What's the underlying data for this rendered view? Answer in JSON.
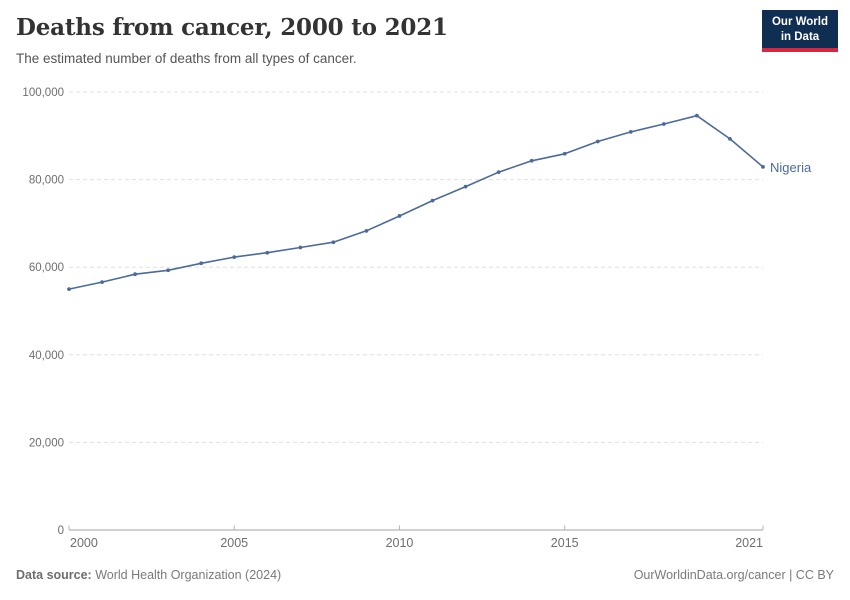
{
  "header": {
    "title": "Deaths from cancer, 2000 to 2021",
    "subtitle": "The estimated number of deaths from all types of cancer."
  },
  "logo": {
    "line1": "Our World",
    "line2": "in Data",
    "bg_color": "#102D52",
    "bar_color": "#D7263D"
  },
  "chart_data": {
    "type": "line",
    "title": "Deaths from cancer, 2000 to 2021",
    "subtitle": "The estimated number of deaths from all types of cancer.",
    "x": [
      2000,
      2001,
      2002,
      2003,
      2004,
      2005,
      2006,
      2007,
      2008,
      2009,
      2010,
      2011,
      2012,
      2013,
      2014,
      2015,
      2016,
      2017,
      2018,
      2019,
      2020,
      2021
    ],
    "series": [
      {
        "name": "Nigeria",
        "color": "#4C6A9C",
        "values": [
          55000,
          56600,
          58400,
          59300,
          60900,
          62300,
          63300,
          64500,
          65700,
          68300,
          71700,
          75200,
          78400,
          81700,
          84300,
          85900,
          88700,
          90900,
          92700,
          94600,
          89300,
          82900
        ]
      }
    ],
    "xlabel": "",
    "ylabel": "",
    "xlim": [
      2000,
      2021
    ],
    "ylim": [
      0,
      100000
    ],
    "xticks": [
      2000,
      2005,
      2010,
      2015,
      2021
    ],
    "yticks": [
      0,
      20000,
      40000,
      60000,
      80000,
      100000
    ],
    "ytick_labels": [
      "0",
      "20,000",
      "40,000",
      "60,000",
      "80,000",
      "100,000"
    ],
    "grid": "horizontal-dashed",
    "legend_position": "end-of-line-label"
  },
  "footer": {
    "source_label": "Data source:",
    "source_value": " World Health Organization (2024)",
    "credit": "OurWorldinData.org/cancer | CC BY"
  }
}
